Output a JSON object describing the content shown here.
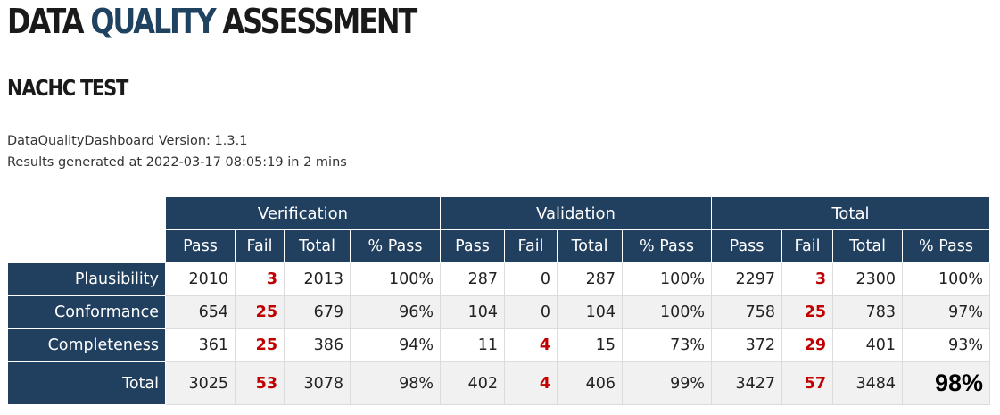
{
  "header": {
    "title_part1": "DATA ",
    "title_part2": "QUALITY",
    "title_part3": " ASSESSMENT",
    "subtitle": "NACHC TEST",
    "version_line": "DataQualityDashboard Version: 1.3.1",
    "generated_line": "Results generated at 2022-03-17 08:05:19 in 2 mins"
  },
  "colors": {
    "header_bg": "#213f5e",
    "fail_red": "#c00000",
    "title_accent": "#1e4260"
  },
  "table": {
    "groups": [
      "Verification",
      "Validation",
      "Total"
    ],
    "columns": [
      "Pass",
      "Fail",
      "Total",
      "% Pass",
      "Pass",
      "Fail",
      "Total",
      "% Pass",
      "Pass",
      "Fail",
      "Total",
      "% Pass"
    ],
    "rows": [
      {
        "label": "Plausibility",
        "cells": [
          "2010",
          "3",
          "2013",
          "100%",
          "287",
          "0",
          "287",
          "100%",
          "2297",
          "3",
          "2300",
          "100%"
        ]
      },
      {
        "label": "Conformance",
        "cells": [
          "654",
          "25",
          "679",
          "96%",
          "104",
          "0",
          "104",
          "100%",
          "758",
          "25",
          "783",
          "97%"
        ]
      },
      {
        "label": "Completeness",
        "cells": [
          "361",
          "25",
          "386",
          "94%",
          "11",
          "4",
          "15",
          "73%",
          "372",
          "29",
          "401",
          "93%"
        ]
      },
      {
        "label": "Total",
        "cells": [
          "3025",
          "53",
          "3078",
          "98%",
          "402",
          "4",
          "406",
          "99%",
          "3427",
          "57",
          "3484",
          "98%"
        ]
      }
    ]
  }
}
